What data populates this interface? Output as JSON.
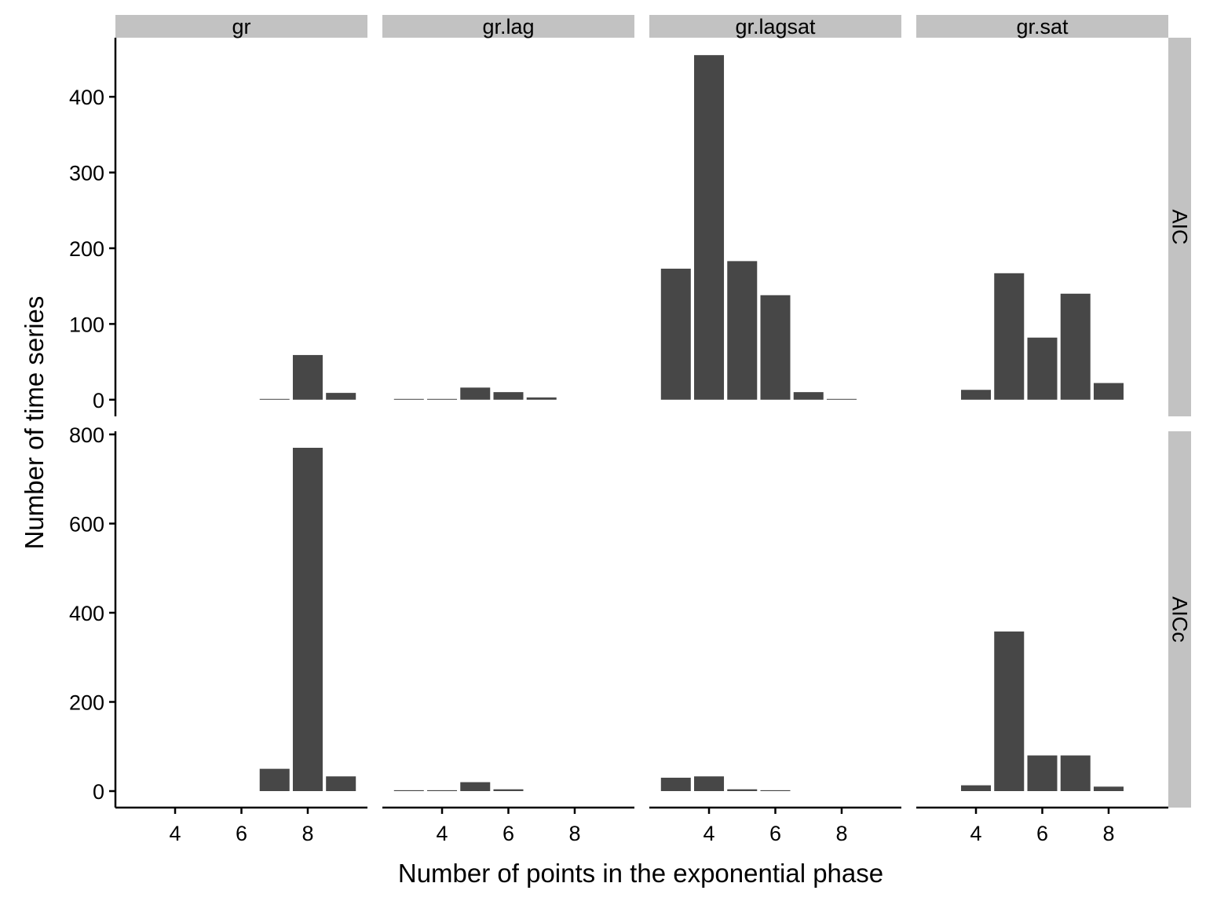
{
  "chart_data": {
    "type": "bar",
    "xlabel": "Number of points in the exponential phase",
    "ylabel": "Number of time series",
    "colors": {
      "bar": "#474747",
      "strip": "#c2c2c2",
      "axis": "#000000"
    },
    "columns": [
      "gr",
      "gr.lag",
      "gr.lagsat",
      "gr.sat"
    ],
    "rows": [
      "AIC",
      "AICc"
    ],
    "x_ticks": [
      4,
      6,
      8
    ],
    "x_range": [
      2.2,
      9.8
    ],
    "row_scales": [
      {
        "ylim": [
          -22,
          478
        ],
        "yticks": [
          0,
          100,
          200,
          300,
          400
        ]
      },
      {
        "ylim": [
          -37,
          807
        ],
        "yticks": [
          0,
          200,
          400,
          600,
          800
        ]
      }
    ],
    "panels": [
      {
        "row": "AIC",
        "column": "gr",
        "x": [
          7,
          8,
          9
        ],
        "values": [
          1,
          59,
          9
        ]
      },
      {
        "row": "AIC",
        "column": "gr.lag",
        "x": [
          3,
          4,
          5,
          6,
          7
        ],
        "values": [
          1,
          1,
          16,
          10,
          3
        ]
      },
      {
        "row": "AIC",
        "column": "gr.lagsat",
        "x": [
          3,
          4,
          5,
          6,
          7,
          8
        ],
        "values": [
          173,
          455,
          183,
          138,
          10,
          1
        ]
      },
      {
        "row": "AIC",
        "column": "gr.sat",
        "x": [
          4,
          5,
          6,
          7,
          8
        ],
        "values": [
          13,
          167,
          82,
          140,
          22
        ]
      },
      {
        "row": "AICc",
        "column": "gr",
        "x": [
          7,
          8,
          9
        ],
        "values": [
          50,
          770,
          33
        ]
      },
      {
        "row": "AICc",
        "column": "gr.lag",
        "x": [
          3,
          4,
          5,
          6
        ],
        "values": [
          2,
          2,
          20,
          4
        ]
      },
      {
        "row": "AICc",
        "column": "gr.lagsat",
        "x": [
          3,
          4,
          5,
          6
        ],
        "values": [
          30,
          33,
          4,
          2
        ]
      },
      {
        "row": "AICc",
        "column": "gr.sat",
        "x": [
          4,
          5,
          6,
          7,
          8
        ],
        "values": [
          13,
          358,
          80,
          80,
          10
        ]
      }
    ]
  }
}
